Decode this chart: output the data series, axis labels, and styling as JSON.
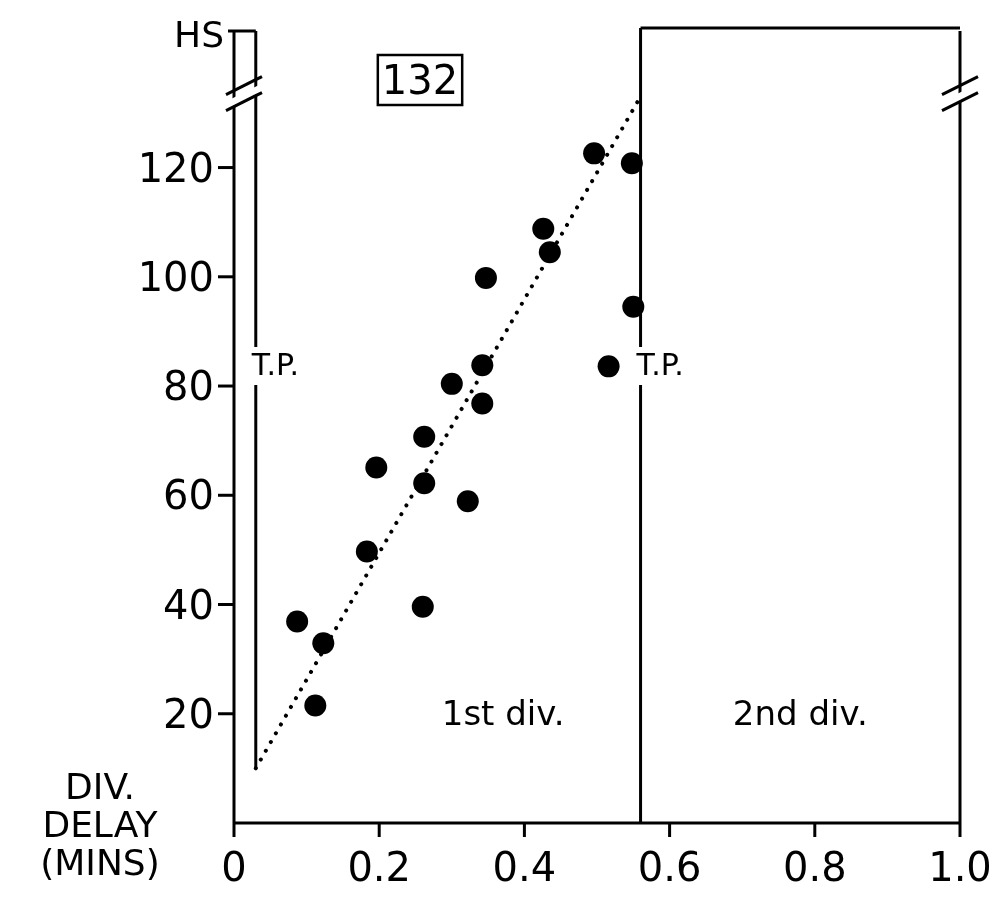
{
  "chart_data": {
    "type": "scatter",
    "ylabel": "DIV.\nDELAY\n(MINS)",
    "xlim": [
      0,
      1
    ],
    "xticks": [
      0,
      0.2,
      0.4,
      0.6,
      0.8,
      {
        "value": 1,
        "label": "1.0"
      }
    ],
    "ylim": [
      0,
      145
    ],
    "yticks": [
      20,
      40,
      60,
      80,
      100,
      120
    ],
    "annotations": [
      "HS",
      "132",
      "1st div.",
      "2nd div."
    ],
    "ref_lines": [
      {
        "axis": "x",
        "value": 0.03,
        "label": "T.P."
      },
      {
        "axis": "x",
        "value": 0.56,
        "label": "T.P."
      }
    ],
    "series": [
      {
        "color": "#000000",
        "marker": "circle",
        "x": [
          0.496,
          0.548,
          0.426,
          0.435,
          0.347,
          0.55,
          0.342,
          0.516,
          0.3,
          0.342,
          0.262,
          0.196,
          0.262,
          0.322,
          0.183,
          0.26,
          0.087,
          0.123,
          0.112
        ],
        "values": [
          122.6,
          120.8,
          108.8,
          104.5,
          99.8,
          94.5,
          83.8,
          83.6,
          80.4,
          76.8,
          70.7,
          65.1,
          62.2,
          58.9,
          49.7,
          39.6,
          36.9,
          32.9,
          21.5
        ]
      },
      {
        "type": "line",
        "color": "#000000",
        "marker": "none",
        "line_style": "dotted",
        "x": [
          0.03,
          0.56
        ],
        "values": [
          10,
          133
        ]
      }
    ]
  }
}
